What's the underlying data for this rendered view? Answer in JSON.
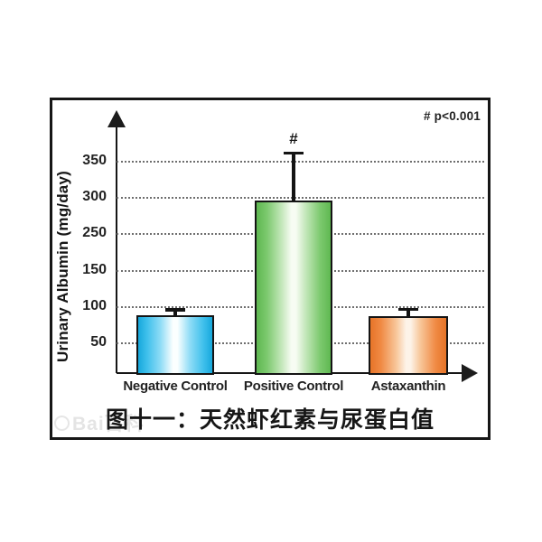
{
  "figure": {
    "caption": "图十一：天然虾红素与尿蛋白值",
    "watermark_text": "Bai百科"
  },
  "chart_data": {
    "type": "bar",
    "title": "图十一：天然虾红素与尿蛋白值",
    "ylabel": "Urinary Albumin (mg/day)",
    "xlabel": "",
    "categories": [
      "Negative Control",
      "Positive Control",
      "Astaxanthin"
    ],
    "values": [
      88,
      297,
      87
    ],
    "error_plus": [
      10,
      67,
      12
    ],
    "significance": [
      "",
      "#",
      ""
    ],
    "annotation": "# p<0.001",
    "yticks": [
      350,
      300,
      250,
      150,
      100,
      50
    ],
    "ytick_note_as_printed": "axis labels shown top-to-bottom: 350, 300, 250, 150, 100, 50 (200 not printed), evenly spaced dotted gridlines",
    "ylim": [
      0,
      390
    ],
    "grid": "horizontal dotted",
    "legend": "none",
    "bar_colors": [
      {
        "name": "blue",
        "edge": "#17a8dc",
        "center": "#ffffff"
      },
      {
        "name": "green",
        "edge": "#5fb851",
        "center": "#f7fcf3"
      },
      {
        "name": "orange",
        "edge": "#e67428",
        "center": "#fdf3e8"
      }
    ],
    "axis_color": "#161616"
  }
}
